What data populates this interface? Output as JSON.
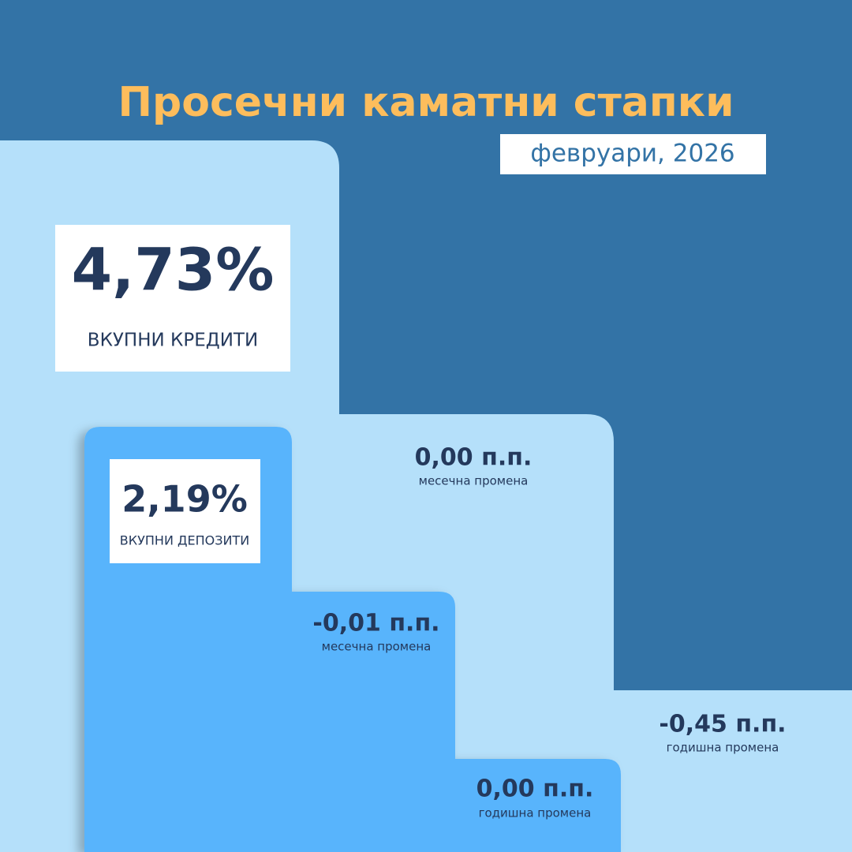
{
  "header": {
    "title": "Просечни каматни стапки",
    "subtitle": "февруари, 2026"
  },
  "loans": {
    "value": "4,73%",
    "label": "ВКУПНИ КРЕДИТИ",
    "monthly_change": {
      "value": "0,00 п.п.",
      "label": "месечна промена"
    },
    "annual_change": {
      "value": "-0,45 п.п.",
      "label": "годишна промена"
    }
  },
  "deposits": {
    "value": "2,19%",
    "label": "ВКУПНИ ДЕПОЗИТИ",
    "monthly_change": {
      "value": "-0,01 п.п.",
      "label": "месечна промена"
    },
    "annual_change": {
      "value": "0,00 п.п.",
      "label": "годишна промена"
    }
  }
}
